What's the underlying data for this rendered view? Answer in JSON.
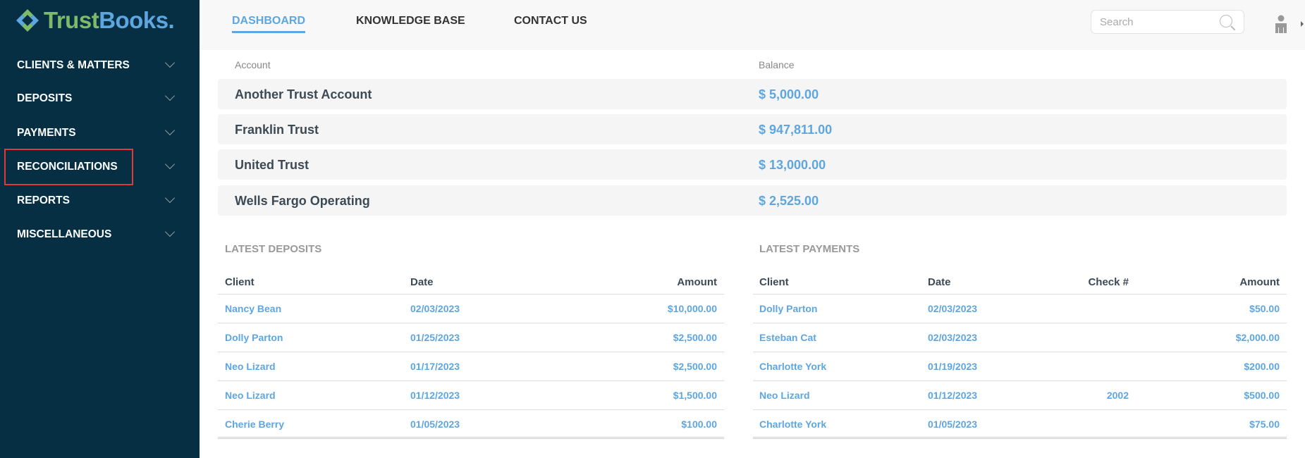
{
  "brand": {
    "name_part1": "Trust",
    "name_part2": "Books",
    "dot": "."
  },
  "sidebar": {
    "items": [
      {
        "label": "CLIENTS & MATTERS"
      },
      {
        "label": "DEPOSITS"
      },
      {
        "label": "PAYMENTS"
      },
      {
        "label": "RECONCILIATIONS",
        "highlighted": true
      },
      {
        "label": "REPORTS"
      },
      {
        "label": "MISCELLANEOUS"
      }
    ]
  },
  "header": {
    "nav": [
      {
        "label": "DASHBOARD",
        "active": true
      },
      {
        "label": "KNOWLEDGE BASE"
      },
      {
        "label": "CONTACT US"
      }
    ],
    "search_placeholder": "Search"
  },
  "accounts": {
    "col_account": "Account",
    "col_balance": "Balance",
    "rows": [
      {
        "name": "Another Trust Account",
        "balance": "$ 5,000.00"
      },
      {
        "name": "Franklin Trust",
        "balance": "$ 947,811.00"
      },
      {
        "name": "United Trust",
        "balance": "$ 13,000.00"
      },
      {
        "name": "Wells Fargo Operating",
        "balance": "$ 2,525.00"
      }
    ]
  },
  "deposits": {
    "title": "LATEST DEPOSITS",
    "headers": [
      "Client",
      "Date",
      "Amount"
    ],
    "rows": [
      [
        "Nancy Bean",
        "02/03/2023",
        "$10,000.00"
      ],
      [
        "Dolly Parton",
        "01/25/2023",
        "$2,500.00"
      ],
      [
        "Neo Lizard",
        "01/17/2023",
        "$2,500.00"
      ],
      [
        "Neo Lizard",
        "01/12/2023",
        "$1,500.00"
      ],
      [
        "Cherie Berry",
        "01/05/2023",
        "$100.00"
      ]
    ]
  },
  "payments": {
    "title": "LATEST PAYMENTS",
    "headers": [
      "Client",
      "Date",
      "Check #",
      "Amount"
    ],
    "rows": [
      [
        "Dolly Parton",
        "02/03/2023",
        "",
        "$50.00"
      ],
      [
        "Esteban Cat",
        "02/03/2023",
        "",
        "$2,000.00"
      ],
      [
        "Charlotte York",
        "01/19/2023",
        "",
        "$200.00"
      ],
      [
        "Neo Lizard",
        "01/12/2023",
        "2002",
        "$500.00"
      ],
      [
        "Charlotte York",
        "01/05/2023",
        "",
        "$75.00"
      ]
    ]
  },
  "colors": {
    "sidebar_bg": "#062f44",
    "accent": "#5ea6df",
    "logo_green": "#7fb96a",
    "highlight": "#e0393a"
  }
}
